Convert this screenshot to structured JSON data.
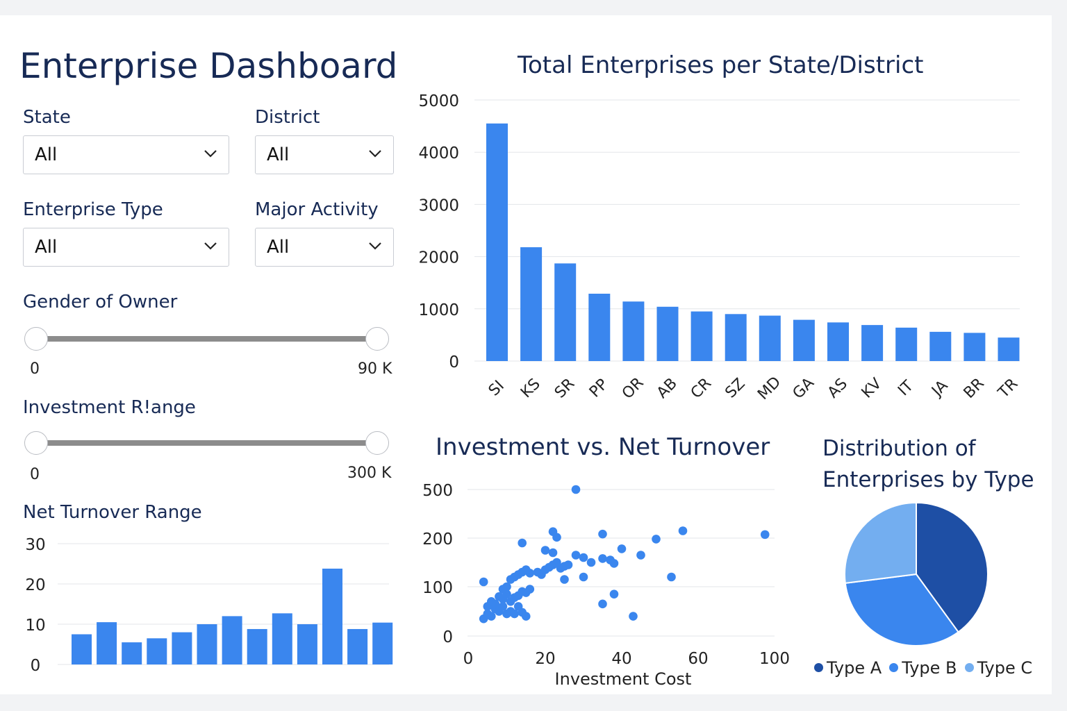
{
  "dashboard": {
    "title": "Enterprise Dashboard"
  },
  "filters": {
    "state": {
      "label": "State",
      "value": "All"
    },
    "district": {
      "label": "District",
      "value": "All"
    },
    "enterprise_type": {
      "label": "Enterprise Type",
      "value": "All"
    },
    "major_activity": {
      "label": "Major Activity",
      "value": "All"
    }
  },
  "sliders": {
    "gender": {
      "label": "Gender of Owner",
      "min_label": "0",
      "max_label": "90 K"
    },
    "investment": {
      "label": "Investment R!ange",
      "min_label": "0",
      "max_label": "300 K"
    }
  },
  "net_turnover": {
    "label": "Net Turnover Range"
  },
  "colors": {
    "bar": "#3a86ee",
    "dot": "#3a86ee",
    "type_a": "#1e4fa5",
    "type_b": "#3a86ee",
    "type_c": "#73aef0",
    "grid": "#e3e5e9"
  },
  "chart_data": [
    {
      "id": "enterprises_per_state",
      "type": "bar",
      "title": "Total Enterprises per State/District",
      "categories": [
        "SI",
        "KS",
        "SR",
        "PP",
        "OR",
        "AB",
        "CR",
        "SZ",
        "MD",
        "GA",
        "AS",
        "KV",
        "IT",
        "JA",
        "BR",
        "TR"
      ],
      "values": [
        4550,
        2180,
        1870,
        1290,
        1140,
        1040,
        950,
        900,
        870,
        790,
        740,
        690,
        640,
        560,
        540,
        450
      ],
      "yticks": [
        "0",
        "1000",
        "2000",
        "3000",
        "4000",
        "5000"
      ],
      "ylim": [
        0,
        5000
      ],
      "grid": true
    },
    {
      "id": "net_turnover_hist",
      "type": "bar",
      "title": "Net Turnover Range",
      "values": [
        7.5,
        10.5,
        5.5,
        6.5,
        8,
        10,
        12,
        8.8,
        12.7,
        10,
        23.8,
        8.8,
        10.4
      ],
      "yticks": [
        "0",
        "10",
        "20",
        "30"
      ],
      "ylim": [
        0,
        30
      ],
      "grid": true
    },
    {
      "id": "investment_vs_turnover",
      "type": "scatter",
      "title": "Investment vs. Net Turnover",
      "xlabel": "Investment Cost",
      "xticks": [
        "0",
        "20",
        "40",
        "60",
        "100"
      ],
      "yticks": [
        "0",
        "100",
        "200",
        "500"
      ],
      "xlim": [
        0,
        100
      ],
      "grid": true,
      "points": [
        [
          4,
          35
        ],
        [
          5,
          45
        ],
        [
          6,
          40
        ],
        [
          7,
          55
        ],
        [
          8,
          50
        ],
        [
          9,
          60
        ],
        [
          10,
          45
        ],
        [
          11,
          50
        ],
        [
          12,
          45
        ],
        [
          13,
          60
        ],
        [
          14,
          48
        ],
        [
          15,
          40
        ],
        [
          5,
          60
        ],
        [
          6,
          70
        ],
        [
          7,
          65
        ],
        [
          8,
          80
        ],
        [
          9,
          75
        ],
        [
          10,
          85
        ],
        [
          11,
          70
        ],
        [
          12,
          78
        ],
        [
          13,
          82
        ],
        [
          14,
          90
        ],
        [
          15,
          88
        ],
        [
          16,
          95
        ],
        [
          4,
          110
        ],
        [
          9,
          95
        ],
        [
          10,
          100
        ],
        [
          11,
          115
        ],
        [
          12,
          120
        ],
        [
          13,
          125
        ],
        [
          14,
          130
        ],
        [
          15,
          135
        ],
        [
          16,
          128
        ],
        [
          18,
          130
        ],
        [
          19,
          125
        ],
        [
          20,
          135
        ],
        [
          21,
          140
        ],
        [
          22,
          145
        ],
        [
          23,
          150
        ],
        [
          24,
          138
        ],
        [
          25,
          142
        ],
        [
          26,
          145
        ],
        [
          22,
          170
        ],
        [
          28,
          165
        ],
        [
          30,
          160
        ],
        [
          32,
          150
        ],
        [
          35,
          158
        ],
        [
          37,
          155
        ],
        [
          38,
          148
        ],
        [
          14,
          190
        ],
        [
          20,
          175
        ],
        [
          23,
          205
        ],
        [
          40,
          178
        ],
        [
          45,
          165
        ],
        [
          49,
          198
        ],
        [
          53,
          120
        ],
        [
          35,
          65
        ],
        [
          43,
          40
        ],
        [
          38,
          85
        ],
        [
          30,
          120
        ],
        [
          25,
          115
        ],
        [
          22,
          240
        ],
        [
          28,
          500
        ],
        [
          35,
          225
        ],
        [
          56,
          245
        ],
        [
          95,
          222
        ]
      ]
    },
    {
      "id": "enterprise_type_pie",
      "type": "pie",
      "title": "Distribution of Enterprises by Type",
      "labels": [
        "Type A",
        "Type B",
        "Type C"
      ],
      "values": [
        40,
        33,
        27
      ]
    }
  ]
}
